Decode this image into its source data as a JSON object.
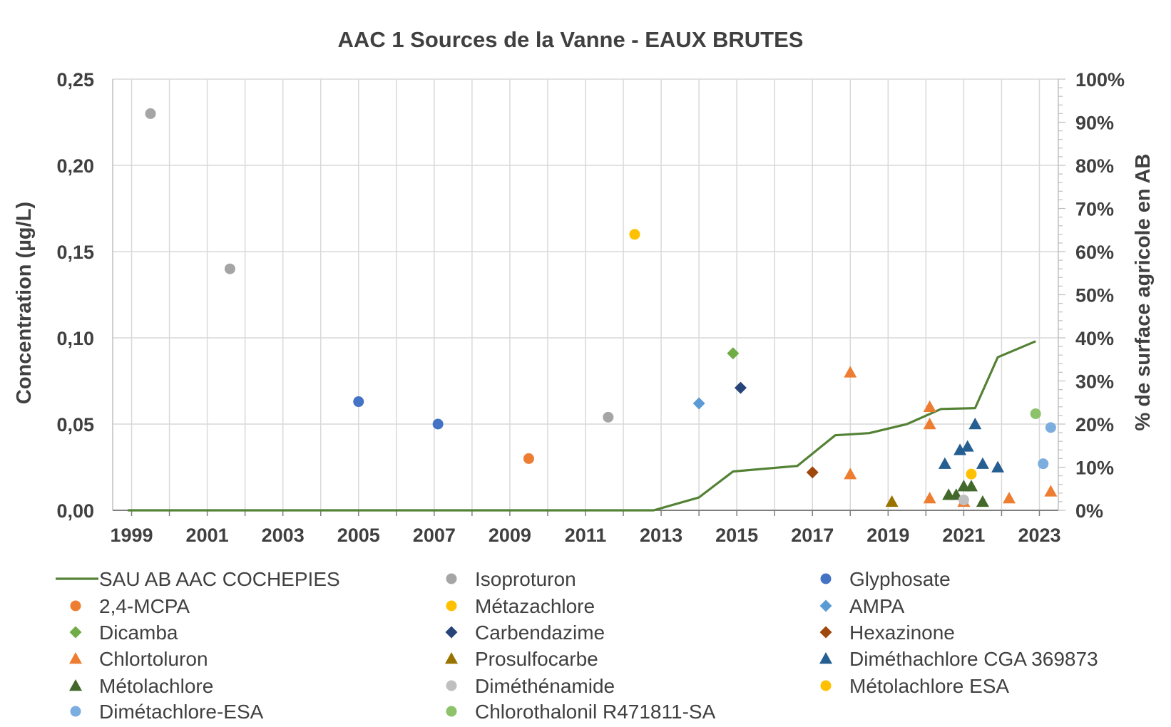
{
  "chart_data": {
    "type": "scatter",
    "title": "AAC 1 Sources de la Vanne - EAUX BRUTES",
    "xlabel": "",
    "ylabel": "Concentration (µg/L)",
    "y2label": "% de surface agricole en AB",
    "xlim": [
      1998.5,
      2023.5
    ],
    "ylim": [
      0,
      0.25
    ],
    "y2lim": [
      0,
      100
    ],
    "x_ticks": [
      1999,
      2001,
      2003,
      2005,
      2007,
      2009,
      2011,
      2013,
      2015,
      2017,
      2019,
      2021,
      2023
    ],
    "y_ticks": [
      {
        "value": 0,
        "label": "0,00"
      },
      {
        "value": 0.05,
        "label": "0,05"
      },
      {
        "value": 0.1,
        "label": "0,10"
      },
      {
        "value": 0.15,
        "label": "0,15"
      },
      {
        "value": 0.2,
        "label": "0,20"
      },
      {
        "value": 0.25,
        "label": "0,25"
      }
    ],
    "y2_ticks": [
      {
        "value": 0,
        "label": "0%"
      },
      {
        "value": 10,
        "label": "10%"
      },
      {
        "value": 20,
        "label": "20%"
      },
      {
        "value": 30,
        "label": "30%"
      },
      {
        "value": 40,
        "label": "40%"
      },
      {
        "value": 50,
        "label": "50%"
      },
      {
        "value": 60,
        "label": "60%"
      },
      {
        "value": 70,
        "label": "70%"
      },
      {
        "value": 80,
        "label": "80%"
      },
      {
        "value": 90,
        "label": "90%"
      },
      {
        "value": 100,
        "label": "100%"
      }
    ],
    "grid": true,
    "legend_position": "bottom",
    "line_series": {
      "name": "SAU AB AAC COCHEPIES",
      "color": "#548235",
      "axis": "y2",
      "points": [
        {
          "x": 1998.9,
          "y": 0
        },
        {
          "x": 2012.8,
          "y": 0
        },
        {
          "x": 2014.0,
          "y": 3
        },
        {
          "x": 2014.9,
          "y": 9
        },
        {
          "x": 2016.6,
          "y": 10.3
        },
        {
          "x": 2017.6,
          "y": 17.4
        },
        {
          "x": 2018.5,
          "y": 17.9
        },
        {
          "x": 2019.5,
          "y": 20
        },
        {
          "x": 2020.4,
          "y": 23.5
        },
        {
          "x": 2021.3,
          "y": 23.7
        },
        {
          "x": 2021.9,
          "y": 35.5
        },
        {
          "x": 2022.9,
          "y": 39.2
        }
      ]
    },
    "series": [
      {
        "name": "Isoproturon",
        "marker": "circle",
        "color": "#a5a5a5",
        "points": [
          {
            "x": 1999.5,
            "y": 0.23
          },
          {
            "x": 2001.6,
            "y": 0.14
          },
          {
            "x": 2011.6,
            "y": 0.054
          }
        ]
      },
      {
        "name": "Glyphosate",
        "marker": "circle",
        "color": "#4472c4",
        "points": [
          {
            "x": 2005.0,
            "y": 0.063
          },
          {
            "x": 2007.1,
            "y": 0.05
          }
        ]
      },
      {
        "name": "2,4-MCPA",
        "marker": "circle",
        "color": "#ed7d31",
        "points": [
          {
            "x": 2009.5,
            "y": 0.03
          }
        ]
      },
      {
        "name": "Métazachlore",
        "marker": "circle",
        "color": "#ffc000",
        "points": [
          {
            "x": 2012.3,
            "y": 0.16
          }
        ]
      },
      {
        "name": "AMPA",
        "marker": "diamond",
        "color": "#5b9bd5",
        "points": [
          {
            "x": 2014.0,
            "y": 0.062
          }
        ]
      },
      {
        "name": "Dicamba",
        "marker": "diamond",
        "color": "#70ad47",
        "points": [
          {
            "x": 2014.9,
            "y": 0.091
          }
        ]
      },
      {
        "name": "Carbendazime",
        "marker": "diamond",
        "color": "#264478",
        "points": [
          {
            "x": 2015.1,
            "y": 0.071
          }
        ]
      },
      {
        "name": "Hexazinone",
        "marker": "diamond",
        "color": "#9e480e",
        "points": [
          {
            "x": 2017.0,
            "y": 0.022
          }
        ]
      },
      {
        "name": "Chlortoluron",
        "marker": "triangle",
        "color": "#ed7d31",
        "points": [
          {
            "x": 2018.0,
            "y": 0.08
          },
          {
            "x": 2018.0,
            "y": 0.021
          },
          {
            "x": 2020.1,
            "y": 0.06
          },
          {
            "x": 2020.1,
            "y": 0.05
          },
          {
            "x": 2020.1,
            "y": 0.007
          },
          {
            "x": 2021.0,
            "y": 0.005
          },
          {
            "x": 2022.2,
            "y": 0.007
          },
          {
            "x": 2023.3,
            "y": 0.011
          }
        ]
      },
      {
        "name": "Prosulfocarbe",
        "marker": "triangle",
        "color": "#997300",
        "points": [
          {
            "x": 2019.1,
            "y": 0.005
          }
        ]
      },
      {
        "name": "Diméthachlore CGA 369873",
        "marker": "triangle",
        "color": "#255e91",
        "points": [
          {
            "x": 2020.5,
            "y": 0.027
          },
          {
            "x": 2020.9,
            "y": 0.035
          },
          {
            "x": 2021.1,
            "y": 0.037
          },
          {
            "x": 2021.3,
            "y": 0.05
          },
          {
            "x": 2021.5,
            "y": 0.027
          },
          {
            "x": 2021.9,
            "y": 0.025
          }
        ]
      },
      {
        "name": "Métolachlore",
        "marker": "triangle",
        "color": "#43682b",
        "points": [
          {
            "x": 2020.6,
            "y": 0.009
          },
          {
            "x": 2020.8,
            "y": 0.009
          },
          {
            "x": 2021.0,
            "y": 0.014
          },
          {
            "x": 2021.2,
            "y": 0.014
          },
          {
            "x": 2021.5,
            "y": 0.005
          }
        ]
      },
      {
        "name": "Diméthénamide",
        "marker": "circle",
        "color": "#bfbfbf",
        "points": [
          {
            "x": 2021.0,
            "y": 0.006
          }
        ]
      },
      {
        "name": "Métolachlore ESA",
        "marker": "circle",
        "color": "#ffc000",
        "points": [
          {
            "x": 2021.2,
            "y": 0.021
          }
        ]
      },
      {
        "name": "Dimétachlore-ESA",
        "marker": "circle",
        "color": "#7caddf",
        "points": [
          {
            "x": 2023.1,
            "y": 0.027
          },
          {
            "x": 2023.3,
            "y": 0.048
          }
        ]
      },
      {
        "name": "Chlorothalonil R471811-SA",
        "marker": "circle",
        "color": "#8bc26a",
        "points": [
          {
            "x": 2022.9,
            "y": 0.056
          }
        ]
      }
    ],
    "legend": [
      {
        "name": "SAU AB AAC COCHEPIES",
        "marker": "line",
        "color": "#548235"
      },
      {
        "name": "Isoproturon",
        "marker": "circle",
        "color": "#a5a5a5"
      },
      {
        "name": "Glyphosate",
        "marker": "circle",
        "color": "#4472c4"
      },
      {
        "name": "2,4-MCPA",
        "marker": "circle",
        "color": "#ed7d31"
      },
      {
        "name": "Métazachlore",
        "marker": "circle",
        "color": "#ffc000"
      },
      {
        "name": "AMPA",
        "marker": "diamond",
        "color": "#5b9bd5"
      },
      {
        "name": "Dicamba",
        "marker": "diamond",
        "color": "#70ad47"
      },
      {
        "name": "Carbendazime",
        "marker": "diamond",
        "color": "#264478"
      },
      {
        "name": "Hexazinone",
        "marker": "diamond",
        "color": "#9e480e"
      },
      {
        "name": "Chlortoluron",
        "marker": "triangle",
        "color": "#ed7d31"
      },
      {
        "name": "Prosulfocarbe",
        "marker": "triangle",
        "color": "#997300"
      },
      {
        "name": "Diméthachlore CGA 369873",
        "marker": "triangle",
        "color": "#255e91"
      },
      {
        "name": "Métolachlore",
        "marker": "triangle",
        "color": "#43682b"
      },
      {
        "name": "Diméthénamide",
        "marker": "circle",
        "color": "#bfbfbf"
      },
      {
        "name": "Métolachlore ESA",
        "marker": "circle",
        "color": "#ffc000"
      },
      {
        "name": "Dimétachlore-ESA",
        "marker": "circle",
        "color": "#7caddf"
      },
      {
        "name": "Chlorothalonil R471811-SA",
        "marker": "circle",
        "color": "#8bc26a"
      }
    ]
  }
}
